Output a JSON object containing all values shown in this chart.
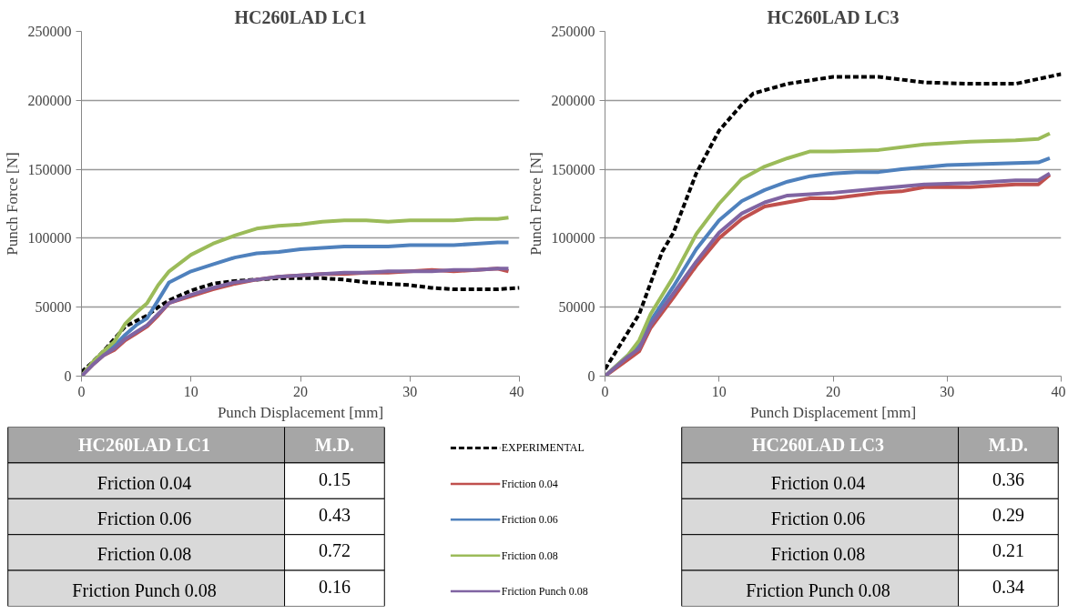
{
  "chart_data": [
    {
      "type": "line",
      "title": "HC260LAD LC1",
      "xlabel": "Punch Displacement [mm]",
      "ylabel": "Punch Force [N]",
      "xlim": [
        0,
        40
      ],
      "ylim": [
        0,
        250000
      ],
      "xticks": [
        0,
        10,
        20,
        30,
        40
      ],
      "yticks": [
        0,
        50000,
        100000,
        150000,
        200000,
        250000
      ],
      "grid": "y",
      "legend": "bottom",
      "series": [
        {
          "name": "EXPERIMENTAL",
          "color": "#000000",
          "line_style": "dashed",
          "x": [
            0,
            1,
            2,
            3,
            4,
            5,
            6,
            7,
            8,
            10,
            12,
            14,
            16,
            18,
            20,
            22,
            24,
            26,
            28,
            30,
            32,
            34,
            36,
            38,
            40
          ],
          "values": [
            3000,
            10000,
            18000,
            27000,
            36000,
            40000,
            44000,
            50000,
            55000,
            62000,
            67000,
            69000,
            70000,
            71000,
            71000,
            71000,
            70000,
            68000,
            67000,
            66000,
            64000,
            63000,
            63000,
            63000,
            64000
          ]
        },
        {
          "name": "Friction 0.04",
          "color": "#c0504d",
          "line_style": "solid",
          "x": [
            0,
            1,
            2,
            3,
            4,
            5,
            6,
            7,
            8,
            10,
            12,
            14,
            16,
            18,
            20,
            22,
            24,
            26,
            28,
            30,
            32,
            34,
            36,
            38,
            39
          ],
          "values": [
            0,
            8000,
            15000,
            19000,
            26000,
            31000,
            36000,
            44000,
            53000,
            58000,
            63000,
            67000,
            70000,
            72000,
            73000,
            74000,
            74000,
            75000,
            75000,
            76000,
            77000,
            76000,
            77000,
            78000,
            76000
          ]
        },
        {
          "name": "Friction 0.06",
          "color": "#4f81bd",
          "line_style": "solid",
          "x": [
            0,
            1,
            2,
            3,
            4,
            5,
            6,
            7,
            8,
            10,
            12,
            14,
            16,
            18,
            20,
            22,
            24,
            26,
            28,
            30,
            32,
            34,
            36,
            38,
            39
          ],
          "values": [
            0,
            9000,
            16000,
            22000,
            30000,
            37000,
            42000,
            55000,
            68000,
            76000,
            81000,
            86000,
            89000,
            90000,
            92000,
            93000,
            94000,
            94000,
            94000,
            95000,
            95000,
            95000,
            96000,
            97000,
            97000
          ]
        },
        {
          "name": "Friction 0.08",
          "color": "#9bbb59",
          "line_style": "solid",
          "x": [
            0,
            1,
            2,
            3,
            4,
            5,
            6,
            7,
            8,
            10,
            12,
            14,
            16,
            18,
            20,
            22,
            24,
            26,
            28,
            30,
            32,
            34,
            36,
            38,
            39
          ],
          "values": [
            0,
            10000,
            18000,
            25000,
            38000,
            46000,
            53000,
            66000,
            76000,
            88000,
            96000,
            102000,
            107000,
            109000,
            110000,
            112000,
            113000,
            113000,
            112000,
            113000,
            113000,
            113000,
            114000,
            114000,
            115000
          ]
        },
        {
          "name": "Friction Punch 0.08",
          "color": "#8064a2",
          "line_style": "solid",
          "x": [
            0,
            1,
            2,
            3,
            4,
            5,
            6,
            7,
            8,
            10,
            12,
            14,
            16,
            18,
            20,
            22,
            24,
            26,
            28,
            30,
            32,
            34,
            36,
            38,
            39
          ],
          "values": [
            0,
            8000,
            15000,
            20000,
            27000,
            32000,
            37000,
            45000,
            53000,
            59000,
            64000,
            68000,
            70000,
            72000,
            73000,
            74000,
            75000,
            75000,
            76000,
            76000,
            76000,
            77000,
            77000,
            78000,
            78000
          ]
        }
      ]
    },
    {
      "type": "line",
      "title": "HC260LAD LC3",
      "xlabel": "Punch Displacement [mm]",
      "ylabel": "Punch Force [N]",
      "xlim": [
        0,
        40
      ],
      "ylim": [
        0,
        250000
      ],
      "xticks": [
        0,
        10,
        20,
        30,
        40
      ],
      "yticks": [
        0,
        50000,
        100000,
        150000,
        200000,
        250000
      ],
      "grid": "y",
      "series": [
        {
          "color": "#000000",
          "line_style": "dashed",
          "x": [
            0,
            3,
            5,
            6,
            8,
            10,
            12,
            13,
            16,
            20,
            24,
            28,
            32,
            36,
            40
          ],
          "values": [
            5000,
            45000,
            90000,
            104000,
            147000,
            178000,
            197000,
            205000,
            212000,
            217000,
            217000,
            213000,
            212000,
            212000,
            219000
          ]
        },
        {
          "color": "#c0504d",
          "line_style": "solid",
          "x": [
            0,
            2,
            3,
            4,
            6,
            8,
            10,
            12,
            14,
            16,
            18,
            20,
            24,
            26,
            28,
            32,
            36,
            38,
            39
          ],
          "values": [
            0,
            12000,
            18000,
            35000,
            57000,
            80000,
            100000,
            114000,
            123000,
            126000,
            129000,
            129000,
            133000,
            134000,
            137000,
            137000,
            139000,
            139000,
            146000
          ]
        },
        {
          "color": "#4f81bd",
          "line_style": "solid",
          "x": [
            0,
            2,
            3,
            4,
            6,
            8,
            10,
            12,
            14,
            16,
            18,
            20,
            22,
            24,
            26,
            30,
            34,
            38,
            39
          ],
          "values": [
            0,
            15000,
            22000,
            40000,
            65000,
            92000,
            113000,
            127000,
            135000,
            141000,
            145000,
            147000,
            148000,
            148000,
            150000,
            153000,
            154000,
            155000,
            158000
          ]
        },
        {
          "color": "#9bbb59",
          "line_style": "solid",
          "x": [
            0,
            2,
            3,
            4,
            6,
            8,
            10,
            12,
            14,
            16,
            18,
            20,
            24,
            28,
            32,
            36,
            38,
            39
          ],
          "values": [
            0,
            15000,
            26000,
            45000,
            72000,
            103000,
            125000,
            143000,
            152000,
            158000,
            163000,
            163000,
            164000,
            168000,
            170000,
            171000,
            172000,
            176000
          ]
        },
        {
          "color": "#8064a2",
          "line_style": "solid",
          "x": [
            0,
            2,
            3,
            4,
            6,
            8,
            10,
            12,
            14,
            16,
            18,
            20,
            24,
            28,
            32,
            36,
            38,
            39
          ],
          "values": [
            0,
            14000,
            20000,
            37000,
            60000,
            83000,
            104000,
            118000,
            126000,
            131000,
            132000,
            133000,
            136000,
            139000,
            140000,
            142000,
            142000,
            147000
          ]
        }
      ]
    },
    {
      "type": "other",
      "title": "HC260LAD LC1",
      "ylabel": "M.D.",
      "categories": [
        "Friction 0.04",
        "Friction 0.06",
        "Friction 0.08",
        "Friction Punch 0.08"
      ],
      "values": [
        0.15,
        0.43,
        0.72,
        0.16
      ],
      "data_labels": true
    },
    {
      "type": "other",
      "title": "HC260LAD LC3",
      "ylabel": "M.D.",
      "categories": [
        "Friction 0.04",
        "Friction 0.06",
        "Friction 0.08",
        "Friction Punch 0.08"
      ],
      "values": [
        0.36,
        0.29,
        0.21,
        0.34
      ],
      "data_labels": true
    }
  ]
}
